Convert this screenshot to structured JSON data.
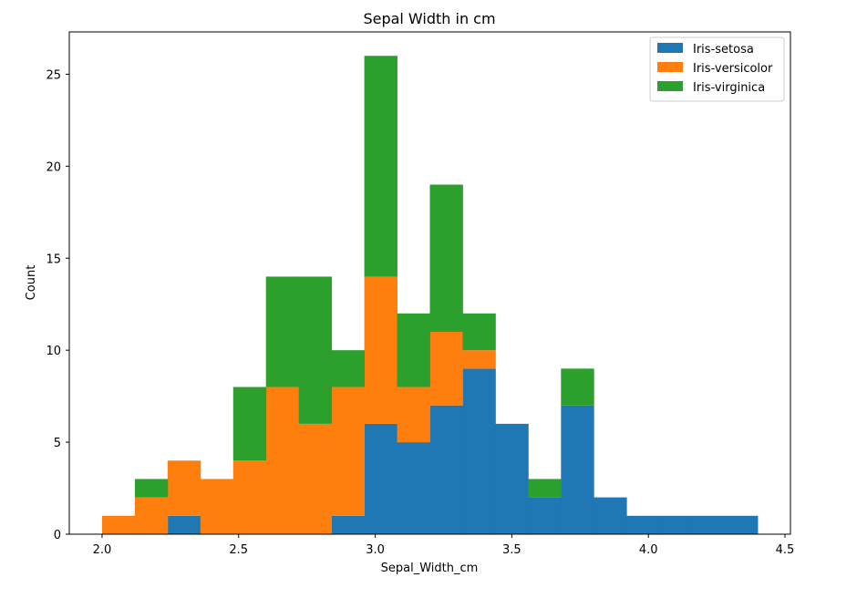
{
  "chart_data": {
    "type": "bar",
    "subtype": "stacked-histogram",
    "title": "Sepal Width in cm",
    "xlabel": "Sepal_Width_cm",
    "ylabel": "Count",
    "xlim": [
      1.88,
      4.52
    ],
    "ylim": [
      0,
      27.3
    ],
    "xticks": [
      2.0,
      2.5,
      3.0,
      3.5,
      4.0,
      4.5
    ],
    "xtick_labels": [
      "2.0",
      "2.5",
      "3.0",
      "3.5",
      "4.0",
      "4.5"
    ],
    "yticks": [
      0,
      5,
      10,
      15,
      20,
      25
    ],
    "ytick_labels": [
      "0",
      "5",
      "10",
      "15",
      "20",
      "25"
    ],
    "bin_edges": [
      2.0,
      2.12,
      2.24,
      2.36,
      2.48,
      2.6,
      2.72,
      2.84,
      2.96,
      3.08,
      3.2,
      3.32,
      3.44,
      3.56,
      3.68,
      3.8,
      3.92,
      4.04,
      4.16,
      4.28,
      4.4
    ],
    "series": [
      {
        "name": "Iris-setosa",
        "color": "#1f77b4",
        "values": [
          0,
          0,
          1,
          0,
          0,
          0,
          0,
          1,
          6,
          5,
          7,
          9,
          6,
          2,
          7,
          2,
          1,
          1,
          1,
          1
        ]
      },
      {
        "name": "Iris-versicolor",
        "color": "#ff7f0e",
        "values": [
          1,
          2,
          3,
          3,
          4,
          8,
          6,
          7,
          8,
          3,
          4,
          1,
          0,
          0,
          0,
          0,
          0,
          0,
          0,
          0
        ]
      },
      {
        "name": "Iris-virginica",
        "color": "#2ca02c",
        "values": [
          0,
          1,
          0,
          0,
          4,
          6,
          8,
          2,
          12,
          4,
          8,
          2,
          0,
          1,
          2,
          0,
          0,
          0,
          0,
          0
        ]
      }
    ],
    "legend_position": "top-right",
    "grid": false
  }
}
